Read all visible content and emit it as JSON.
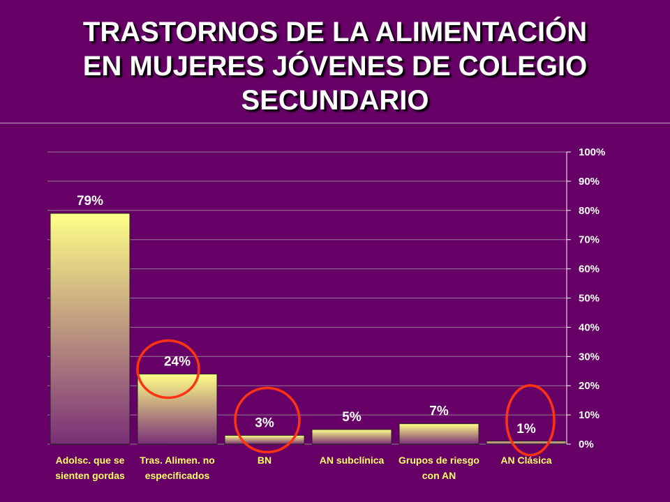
{
  "title_lines": [
    "TRASTORNOS DE LA ALIMENTACIÓN",
    "EN MUJERES JÓVENES DE COLEGIO",
    "SECUNDARIO"
  ],
  "colors": {
    "background": "#660066",
    "bar_top": "#ffff88",
    "bar_bottom": "#7a2f77",
    "circle": "#ff3311",
    "category_text": "#ffff66"
  },
  "chart_data": {
    "type": "bar",
    "title": "TRASTORNOS DE LA ALIMENTACIÓN EN MUJERES JÓVENES DE COLEGIO SECUNDARIO",
    "categories": [
      [
        "Adolsc.  que se",
        "sienten  gordas"
      ],
      [
        "Tras. Alimen. no",
        "especificados"
      ],
      [
        "BN"
      ],
      [
        "AN subclínica"
      ],
      [
        "Grupos  de riesgo",
        "con AN"
      ],
      [
        "AN Clásica"
      ]
    ],
    "values": [
      79,
      24,
      3,
      5,
      7,
      1
    ],
    "data_labels": [
      "79%",
      "24%",
      "3%",
      "5%",
      "7%",
      "1%"
    ],
    "y_ticks": [
      0,
      10,
      20,
      30,
      40,
      50,
      60,
      70,
      80,
      90,
      100
    ],
    "y_tick_labels": [
      "0%",
      "10%",
      "20%",
      "30%",
      "40%",
      "50%",
      "60%",
      "70%",
      "80%",
      "90%",
      "100%"
    ],
    "ylim": [
      0,
      100
    ],
    "y_axis_position": "right",
    "grid": true,
    "highlighted_categories": [
      1,
      2,
      5
    ]
  }
}
